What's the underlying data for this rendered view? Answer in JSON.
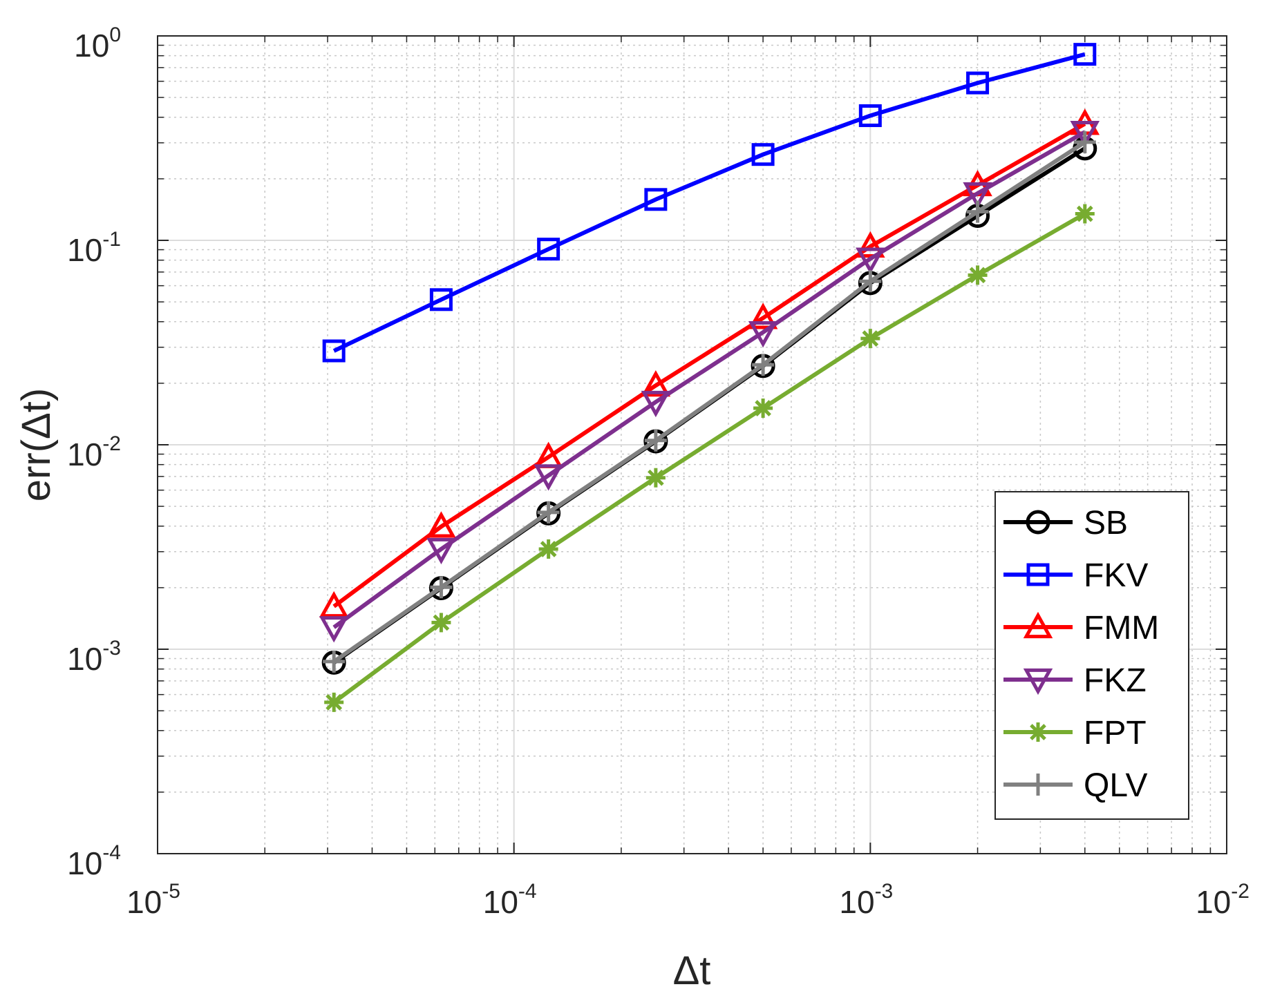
{
  "chart_data": {
    "type": "line",
    "title": "",
    "xlabel": "Δt",
    "ylabel": "err(Δt)",
    "xscale": "log",
    "yscale": "log",
    "xlim": [
      1e-05,
      0.01
    ],
    "ylim": [
      0.0001,
      1
    ],
    "grid": true,
    "minor_grid": true,
    "legend_position": "lower-right",
    "x_ticks": [
      {
        "value": 1e-05,
        "base": "10",
        "exp": "-5"
      },
      {
        "value": 0.0001,
        "base": "10",
        "exp": "-4"
      },
      {
        "value": 0.001,
        "base": "10",
        "exp": "-3"
      },
      {
        "value": 0.01,
        "base": "10",
        "exp": "-2"
      }
    ],
    "y_ticks": [
      {
        "value": 0.0001,
        "base": "10",
        "exp": "-4"
      },
      {
        "value": 0.001,
        "base": "10",
        "exp": "-3"
      },
      {
        "value": 0.01,
        "base": "10",
        "exp": "-2"
      },
      {
        "value": 0.1,
        "base": "10",
        "exp": "-1"
      },
      {
        "value": 1,
        "base": "10",
        "exp": "0"
      }
    ],
    "x": [
      3.125e-05,
      6.25e-05,
      0.000125,
      0.00025,
      0.0005,
      0.001,
      0.002,
      0.004
    ],
    "series": [
      {
        "name": "SB",
        "color": "#000000",
        "marker": "circle",
        "values": [
          0.00086,
          0.00199,
          0.00462,
          0.0104,
          0.0243,
          0.0618,
          0.1318,
          0.2818
        ]
      },
      {
        "name": "FKV",
        "color": "#0000ff",
        "marker": "square",
        "values": [
          0.0288,
          0.0513,
          0.0906,
          0.1585,
          0.263,
          0.4073,
          0.5888,
          0.8128
        ]
      },
      {
        "name": "FMM",
        "color": "#ff0000",
        "marker": "triangle-up",
        "values": [
          0.00162,
          0.00398,
          0.00871,
          0.0195,
          0.0417,
          0.0933,
          0.1862,
          0.3715
        ]
      },
      {
        "name": "FKZ",
        "color": "#7e2f8e",
        "marker": "triangle-down",
        "values": [
          0.00128,
          0.00309,
          0.00708,
          0.0162,
          0.0355,
          0.0813,
          0.1698,
          0.3388
        ]
      },
      {
        "name": "FPT",
        "color": "#77ac30",
        "marker": "asterisk",
        "values": [
          0.00055,
          0.00135,
          0.00309,
          0.0069,
          0.0151,
          0.0331,
          0.0676,
          0.1349
        ]
      },
      {
        "name": "QLV",
        "color": "#808080",
        "marker": "plus",
        "values": [
          0.00087,
          0.00201,
          0.00467,
          0.0105,
          0.0246,
          0.0631,
          0.138,
          0.302
        ]
      }
    ]
  }
}
